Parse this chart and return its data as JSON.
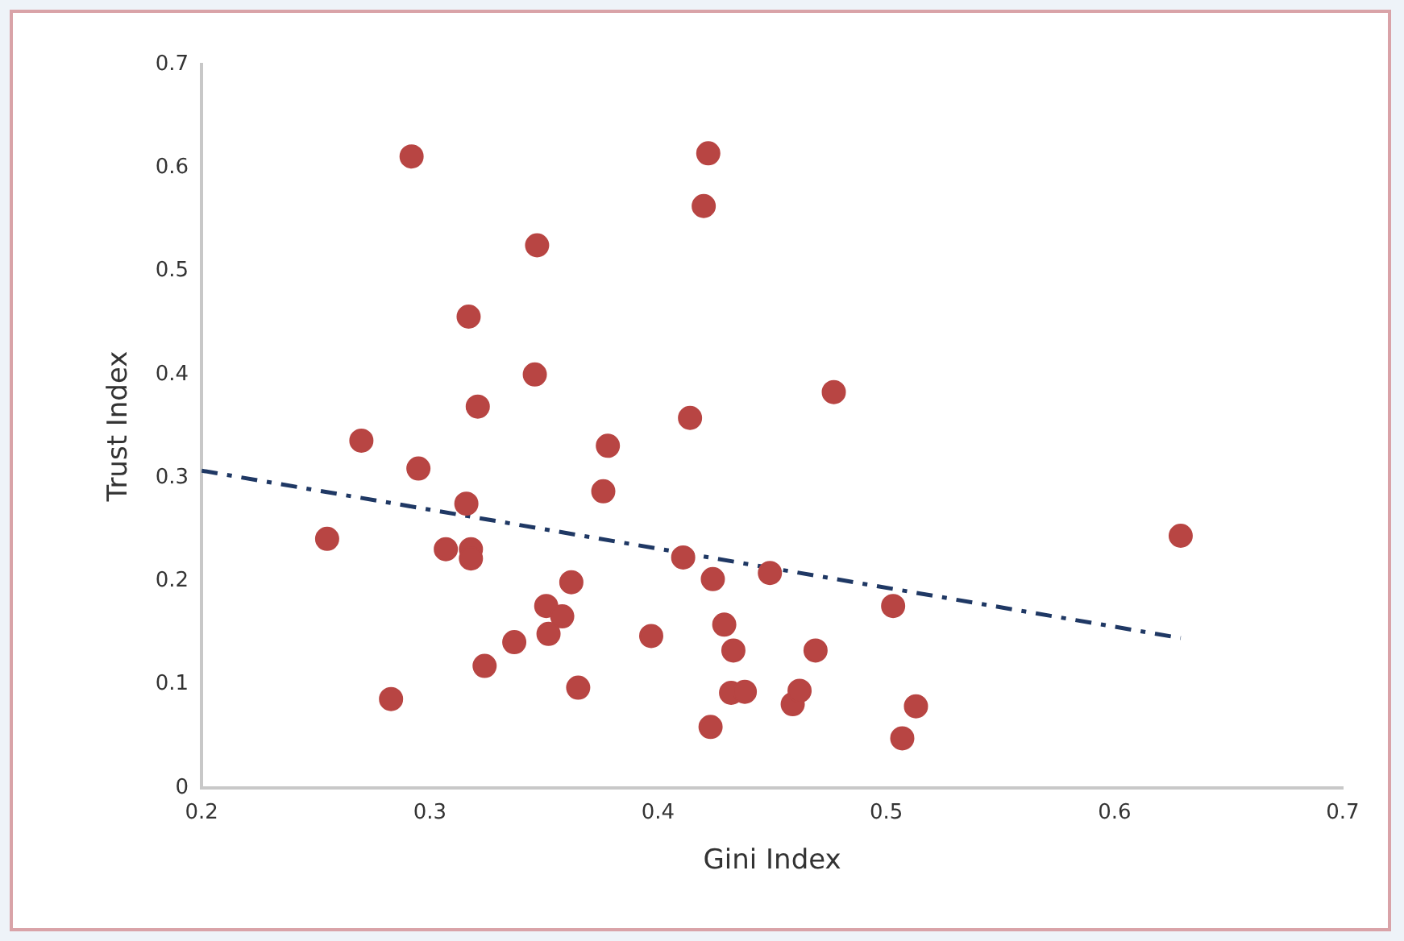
{
  "chart_data": {
    "type": "scatter",
    "xlabel": "Gini Index",
    "ylabel": "Trust Index",
    "xlim": [
      0.2,
      0.7
    ],
    "xticks": [
      0.2,
      0.3,
      0.4,
      0.5,
      0.6,
      0.7
    ],
    "ylim": [
      0,
      0.7
    ],
    "yticks": [
      0,
      0.1,
      0.2,
      0.3,
      0.4,
      0.5,
      0.6,
      0.7
    ],
    "grid": false,
    "legend": false,
    "marker": "circle",
    "series": [
      {
        "color": "#b84543",
        "x": [
          0.292,
          0.422,
          0.42,
          0.347,
          0.317,
          0.346,
          0.321,
          0.27,
          0.295,
          0.316,
          0.255,
          0.307,
          0.318,
          0.318,
          0.362,
          0.351,
          0.358,
          0.352,
          0.337,
          0.324,
          0.283,
          0.365,
          0.397,
          0.429,
          0.433,
          0.423,
          0.432,
          0.438,
          0.459,
          0.462,
          0.469,
          0.503,
          0.513,
          0.507,
          0.629,
          0.477,
          0.414,
          0.378,
          0.376,
          0.411,
          0.424,
          0.449
        ],
        "values": [
          0.611,
          0.614,
          0.563,
          0.525,
          0.456,
          0.4,
          0.369,
          0.336,
          0.309,
          0.275,
          0.241,
          0.231,
          0.231,
          0.222,
          0.199,
          0.176,
          0.166,
          0.149,
          0.141,
          0.118,
          0.086,
          0.097,
          0.147,
          0.158,
          0.133,
          0.059,
          0.092,
          0.093,
          0.081,
          0.094,
          0.133,
          0.176,
          0.079,
          0.048,
          0.244,
          0.383,
          0.358,
          0.331,
          0.287,
          0.223,
          0.202,
          0.208
        ]
      },
      {
        "type": "line",
        "color": "#1f3864",
        "line_style": "dashed",
        "marker": "none",
        "x": [
          0.2,
          0.629
        ],
        "values": [
          0.307,
          0.145
        ]
      }
    ]
  }
}
